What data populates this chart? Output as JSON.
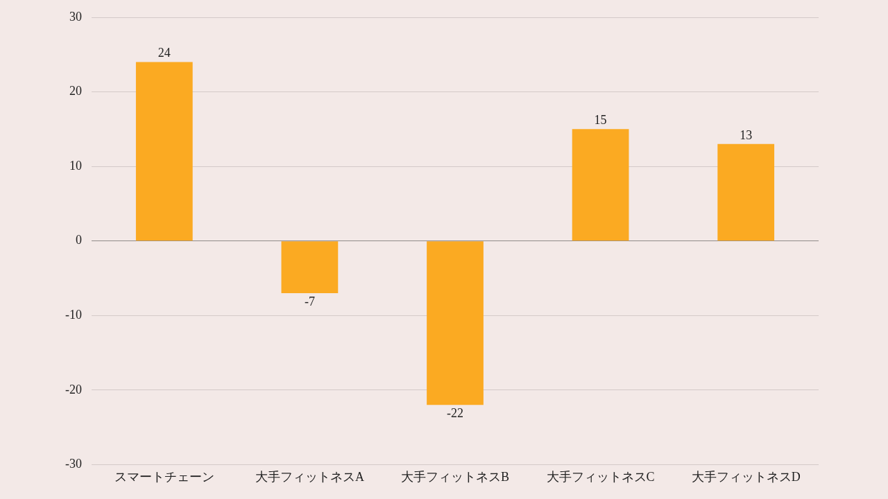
{
  "chart_data": {
    "type": "bar",
    "categories": [
      "スマートチェーン",
      "大手フィットネスA",
      "大手フィットネスB",
      "大手フィットネスC",
      "大手フィットネスD"
    ],
    "values": [
      24,
      -7,
      -22,
      15,
      13
    ],
    "color": "#fbaa22",
    "ylim": [
      -30,
      30
    ],
    "yticks": [
      -30,
      -20,
      -10,
      0,
      10,
      20,
      30
    ],
    "grid": "y",
    "legend": false,
    "data_labels": true
  }
}
